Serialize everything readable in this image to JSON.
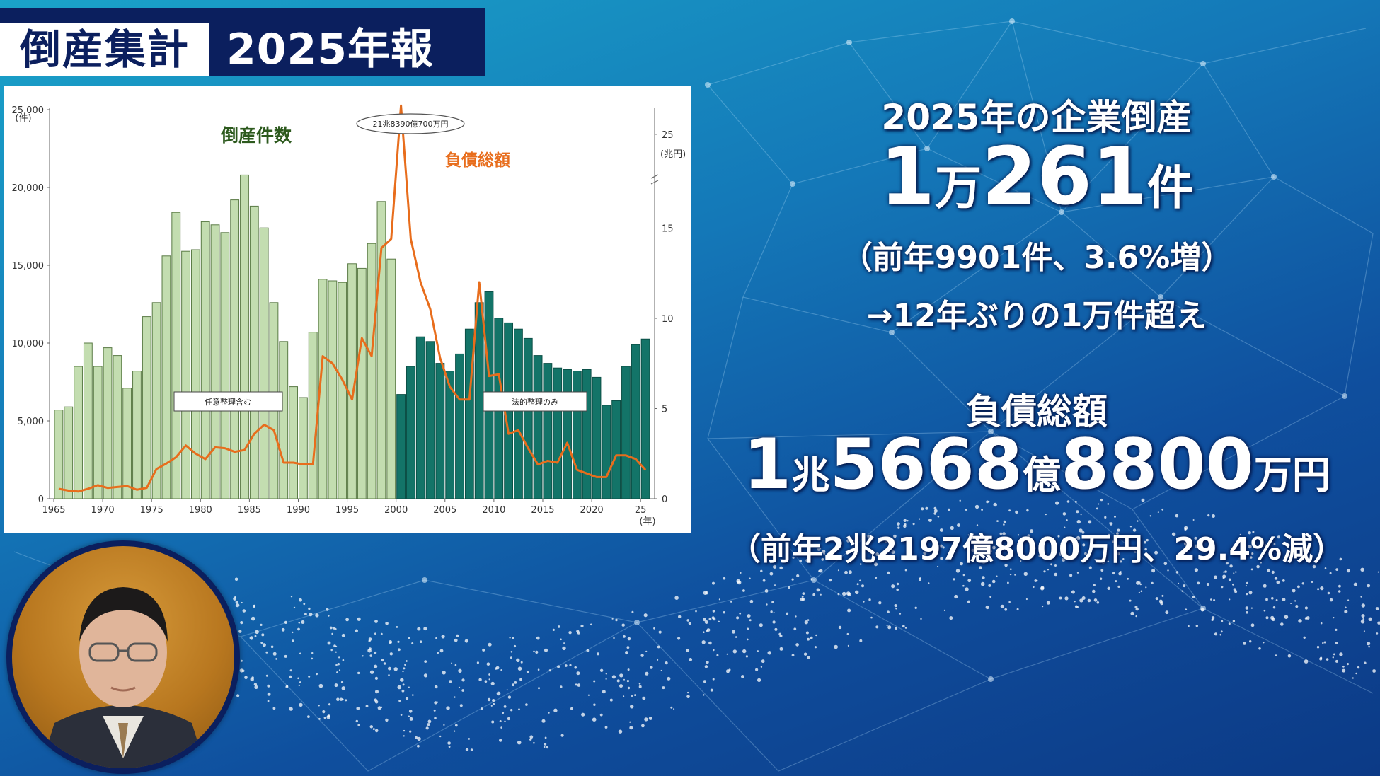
{
  "header": {
    "title_left": "倒産集計",
    "title_right": "2025年報"
  },
  "colors": {
    "bar_light": "#c3ddb0",
    "bar_dark": "#137468",
    "line": "#e86d1c",
    "accent_navy": "#0b1f5e"
  },
  "stats": {
    "heading": "2025年の企業倒産",
    "count_num1": "1",
    "count_unit1": "万",
    "count_num2": "261",
    "count_unit2": "件",
    "count_note": "（前年9901件、3.6%増）",
    "count_note2": "→12年ぶりの1万件超え",
    "debt_heading": "負債総額",
    "debt_num1": "1",
    "debt_unit1": "兆",
    "debt_num2": "5668",
    "debt_unit2": "億",
    "debt_num3": "8800",
    "debt_unit3": "万円",
    "debt_note": "（前年2兆2197億8000万円、29.4%減）"
  },
  "avatar": {
    "icon": "presenter-photo"
  },
  "chart_data": {
    "type": "bar",
    "series_labels": {
      "bars": "倒産件数",
      "line": "負債総額"
    },
    "x": [
      1965,
      1966,
      1967,
      1968,
      1969,
      1970,
      1971,
      1972,
      1973,
      1974,
      1975,
      1976,
      1977,
      1978,
      1979,
      1980,
      1981,
      1982,
      1983,
      1984,
      1985,
      1986,
      1987,
      1988,
      1989,
      1990,
      1991,
      1992,
      1993,
      1994,
      1995,
      1996,
      1997,
      1998,
      1999,
      2000,
      2001,
      2002,
      2003,
      2004,
      2005,
      2006,
      2007,
      2008,
      2009,
      2010,
      2011,
      2012,
      2013,
      2014,
      2015,
      2016,
      2017,
      2018,
      2019,
      2020,
      2021,
      2022,
      2023,
      2024,
      2025
    ],
    "counts": [
      5700,
      5900,
      8500,
      10000,
      8500,
      9700,
      9200,
      7100,
      8200,
      11700,
      12600,
      15600,
      18400,
      15900,
      16000,
      17800,
      17600,
      17100,
      19200,
      20800,
      18800,
      17400,
      12600,
      10100,
      7200,
      6500,
      10700,
      14100,
      14000,
      13900,
      15100,
      14800,
      16400,
      19100,
      15400,
      6700,
      8500,
      10400,
      10100,
      8700,
      8200,
      9300,
      10900,
      12600,
      13300,
      11600,
      11300,
      10900,
      10300,
      9200,
      8700,
      8400,
      8300,
      8200,
      8300,
      7800,
      6000,
      6300,
      8500,
      9900,
      10261
    ],
    "debt_trillion_yen": [
      0.55,
      0.45,
      0.4,
      0.55,
      0.75,
      0.6,
      0.65,
      0.7,
      0.5,
      0.6,
      1.65,
      1.95,
      2.3,
      2.95,
      2.5,
      2.2,
      2.85,
      2.8,
      2.6,
      2.7,
      3.6,
      4.1,
      3.8,
      2.0,
      2.0,
      1.9,
      1.9,
      7.9,
      7.5,
      6.6,
      5.5,
      8.9,
      7.9,
      13.9,
      14.4,
      21.8,
      14.4,
      12.0,
      10.5,
      7.8,
      6.2,
      5.5,
      5.5,
      12.0,
      6.8,
      6.9,
      3.6,
      3.8,
      2.8,
      1.9,
      2.1,
      2.0,
      3.1,
      1.6,
      1.4,
      1.2,
      1.2,
      2.4,
      2.4,
      2.2,
      1.6
    ],
    "x_ticks": [
      "1965",
      "1970",
      "1975",
      "1980",
      "1985",
      "1990",
      "1995",
      "2000",
      "2005",
      "2010",
      "2015",
      "2020",
      "25"
    ],
    "x_unit": "(年)",
    "y_left": {
      "ticks": [
        "0",
        "5,000",
        "10,000",
        "15,000",
        "20,000",
        "25,000"
      ],
      "unit": "(件)",
      "range": [
        0,
        25000
      ]
    },
    "y_right": {
      "ticks": [
        "0",
        "5",
        "10",
        "15",
        "25"
      ],
      "unit": "(兆円)",
      "range": [
        0,
        25
      ]
    },
    "annotations": {
      "peak": "21兆8390億700万円",
      "left_box": "任意整理含む",
      "right_box": "法的整理のみ"
    },
    "split_year": 2000,
    "grid": false,
    "legend": "inline-labels"
  }
}
